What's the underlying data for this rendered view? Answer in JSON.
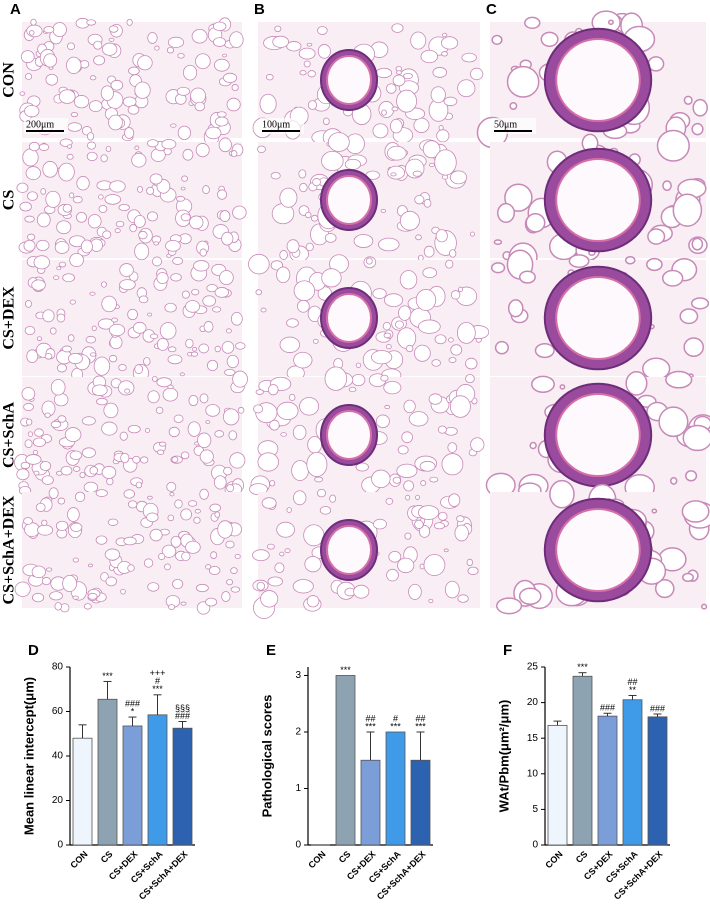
{
  "image_panels": [
    "A",
    "B",
    "C"
  ],
  "row_labels": [
    "CON",
    "CS",
    "CS+DEX",
    "CS+SchA",
    "CS+SchA+DEX"
  ],
  "scale_bars": [
    "200μm",
    "100μm",
    "50μm"
  ],
  "chart_data": [
    {
      "type": "bar",
      "panel": "D",
      "y_label": "Mean linear intercept(μm)",
      "categories": [
        "CON",
        "CS",
        "CS+DEX",
        "CS+SchA",
        "CS+SchA+DEX"
      ],
      "values": [
        48,
        65.5,
        53.5,
        58.5,
        52.5
      ],
      "errors": [
        6,
        8,
        4,
        9,
        3
      ],
      "colors": [
        "#eef5fd",
        "#8ea3b1",
        "#7b9ed9",
        "#3f9be8",
        "#2c62b0"
      ],
      "annotations": [
        null,
        [
          "***"
        ],
        [
          "###",
          "*"
        ],
        [
          "+++",
          "#",
          "***"
        ],
        [
          "§§§",
          "###"
        ]
      ],
      "ylim": [
        0,
        80
      ],
      "yticks": [
        0,
        20,
        40,
        60,
        80
      ]
    },
    {
      "type": "bar",
      "panel": "E",
      "y_label": "Pathological scores",
      "categories": [
        "CON",
        "CS",
        "CS+DEX",
        "CS+SchA",
        "CS+SchA+DEX"
      ],
      "values": [
        0,
        3,
        1.5,
        2,
        1.5
      ],
      "errors": [
        0,
        0,
        0.5,
        0,
        0.5
      ],
      "colors": [
        "#eef5fd",
        "#8ea3b1",
        "#7b9ed9",
        "#3f9be8",
        "#2c62b0"
      ],
      "annotations": [
        null,
        [
          "***"
        ],
        [
          "##",
          "***"
        ],
        [
          "#",
          "***"
        ],
        [
          "##",
          "***"
        ]
      ],
      "ylim": [
        0,
        3.15
      ],
      "yticks": [
        0,
        1,
        2,
        3
      ]
    },
    {
      "type": "bar",
      "panel": "F",
      "y_label": "WAt/Pbm(μm²/μm)",
      "categories": [
        "CON",
        "CS",
        "CS+DEX",
        "CS+SchA",
        "CS+SchA+DEX"
      ],
      "values": [
        16.8,
        23.7,
        18.1,
        20.4,
        18
      ],
      "errors": [
        0.6,
        0.5,
        0.4,
        0.6,
        0.4
      ],
      "colors": [
        "#eef5fd",
        "#8ea3b1",
        "#7b9ed9",
        "#3f9be8",
        "#2c62b0"
      ],
      "annotations": [
        null,
        [
          "***"
        ],
        [
          "###"
        ],
        [
          "##",
          "**"
        ],
        [
          "###"
        ]
      ],
      "ylim": [
        0,
        25
      ],
      "yticks": [
        0,
        5,
        10,
        15,
        20,
        25
      ]
    }
  ]
}
